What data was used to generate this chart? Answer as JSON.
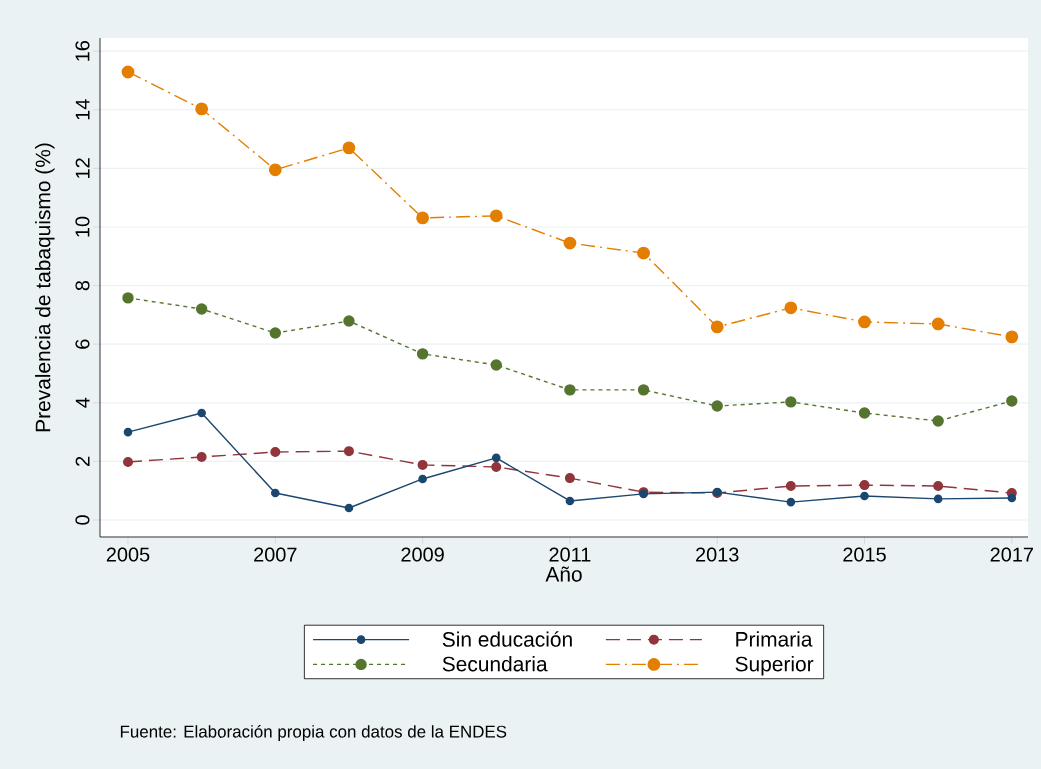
{
  "chart_data": {
    "type": "line",
    "xlabel": "Año",
    "ylabel": "Prevalencia de tabaquismo (%)",
    "x": [
      2005,
      2006,
      2007,
      2008,
      2009,
      2010,
      2011,
      2012,
      2013,
      2014,
      2015,
      2016,
      2017
    ],
    "series": [
      {
        "name": "Sin educación",
        "color": "#1a476f",
        "line_style": "solid",
        "values": [
          3.0,
          3.65,
          0.92,
          0.41,
          1.4,
          2.12,
          0.65,
          0.89,
          0.95,
          0.61,
          0.82,
          0.72,
          0.75
        ]
      },
      {
        "name": "Primaria",
        "color": "#90353b",
        "line_style": "dashed",
        "values": [
          1.98,
          2.15,
          2.32,
          2.35,
          1.88,
          1.81,
          1.43,
          0.95,
          0.92,
          1.16,
          1.19,
          1.16,
          0.92
        ]
      },
      {
        "name": "Secundaria",
        "color": "#55752f",
        "line_style": "dotted",
        "values": [
          7.58,
          7.2,
          6.38,
          6.79,
          5.67,
          5.29,
          4.44,
          4.44,
          3.89,
          4.03,
          3.65,
          3.38,
          4.06
        ]
      },
      {
        "name": "Superior",
        "color": "#e37e00",
        "line_style": "dashdot",
        "values": [
          15.29,
          14.03,
          11.95,
          12.7,
          10.31,
          10.38,
          9.45,
          9.11,
          6.59,
          7.24,
          6.76,
          6.69,
          6.25
        ]
      }
    ],
    "xlim": [
      2004.62,
      2017.22
    ],
    "ylim": [
      -0.58,
      16.45
    ],
    "xticks": [
      2005,
      2007,
      2009,
      2011,
      2013,
      2015,
      2017
    ],
    "yticks": [
      0,
      2,
      4,
      6,
      8,
      10,
      12,
      14,
      16
    ],
    "grid": "y",
    "legend": "bottom",
    "marker": "circle",
    "annotations": [
      "Fuente: Elaboración propia con datos de la ENDES"
    ]
  }
}
